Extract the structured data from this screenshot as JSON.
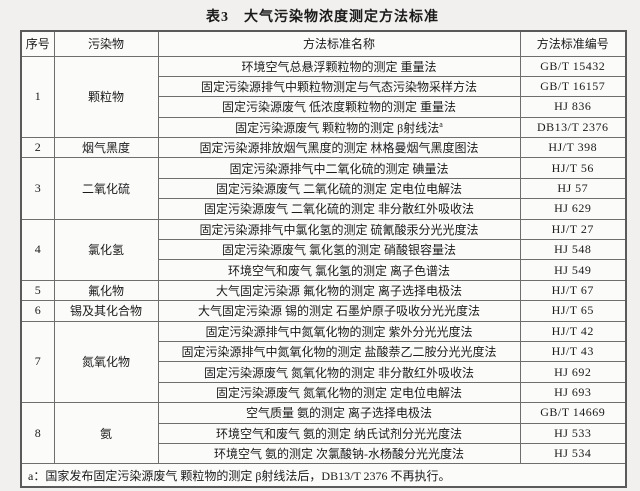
{
  "title": "表3　大气污染物浓度测定方法标准",
  "columns": [
    "序号",
    "污染物",
    "方法标准名称",
    "方法标准编号"
  ],
  "groups": [
    {
      "no": "1",
      "pollutant": "颗粒物",
      "methods": [
        {
          "name": "环境空气总悬浮颗粒物的测定 重量法",
          "code": "GB/T 15432"
        },
        {
          "name": "固定污染源排气中颗粒物测定与气态污染物采样方法",
          "code": "GB/T 16157"
        },
        {
          "name": "固定污染源废气 低浓度颗粒物的测定 重量法",
          "code": "HJ 836"
        },
        {
          "name": "固定污染源废气 颗粒物的测定 β射线法",
          "note": "a",
          "code": "DB13/T 2376"
        }
      ]
    },
    {
      "no": "2",
      "pollutant": "烟气黑度",
      "methods": [
        {
          "name": "固定污染源排放烟气黑度的测定 林格曼烟气黑度图法",
          "code": "HJ/T 398"
        }
      ]
    },
    {
      "no": "3",
      "pollutant": "二氧化硫",
      "methods": [
        {
          "name": "固定污染源排气中二氧化硫的测定 碘量法",
          "code": "HJ/T 56"
        },
        {
          "name": "固定污染源废气 二氧化硫的测定 定电位电解法",
          "code": "HJ 57"
        },
        {
          "name": "固定污染源废气 二氧化硫的测定 非分散红外吸收法",
          "code": "HJ 629"
        }
      ]
    },
    {
      "no": "4",
      "pollutant": "氯化氢",
      "methods": [
        {
          "name": "固定污染源排气中氯化氢的测定 硫氰酸汞分光光度法",
          "code": "HJ/T 27"
        },
        {
          "name": "固定污染源废气 氯化氢的测定 硝酸银容量法",
          "code": "HJ 548"
        },
        {
          "name": "环境空气和废气 氯化氢的测定 离子色谱法",
          "code": "HJ 549"
        }
      ]
    },
    {
      "no": "5",
      "pollutant": "氟化物",
      "methods": [
        {
          "name": "大气固定污染源 氟化物的测定 离子选择电极法",
          "code": "HJ/T 67"
        }
      ]
    },
    {
      "no": "6",
      "pollutant": "锡及其化合物",
      "methods": [
        {
          "name": "大气固定污染源 锡的测定 石墨炉原子吸收分光光度法",
          "code": "HJ/T 65"
        }
      ]
    },
    {
      "no": "7",
      "pollutant": "氮氧化物",
      "methods": [
        {
          "name": "固定污染源排气中氮氧化物的测定 紫外分光光度法",
          "code": "HJ/T 42"
        },
        {
          "name": "固定污染源排气中氮氧化物的测定 盐酸萘乙二胺分光光度法",
          "code": "HJ/T 43"
        },
        {
          "name": "固定污染源废气 氮氧化物的测定 非分散红外吸收法",
          "code": "HJ 692"
        },
        {
          "name": "固定污染源废气 氮氧化物的测定 定电位电解法",
          "code": "HJ 693"
        }
      ]
    },
    {
      "no": "8",
      "pollutant": "氨",
      "methods": [
        {
          "name": "空气质量 氨的测定 离子选择电极法",
          "code": "GB/T 14669"
        },
        {
          "name": "环境空气和废气 氨的测定 纳氏试剂分光光度法",
          "code": "HJ 533"
        },
        {
          "name": "环境空气 氨的测定 次氯酸钠-水杨酸分光光度法",
          "code": "HJ 534"
        }
      ]
    }
  ],
  "footnote": "a：国家发布固定污染源废气 颗粒物的测定 β射线法后，DB13/T 2376 不再执行。"
}
